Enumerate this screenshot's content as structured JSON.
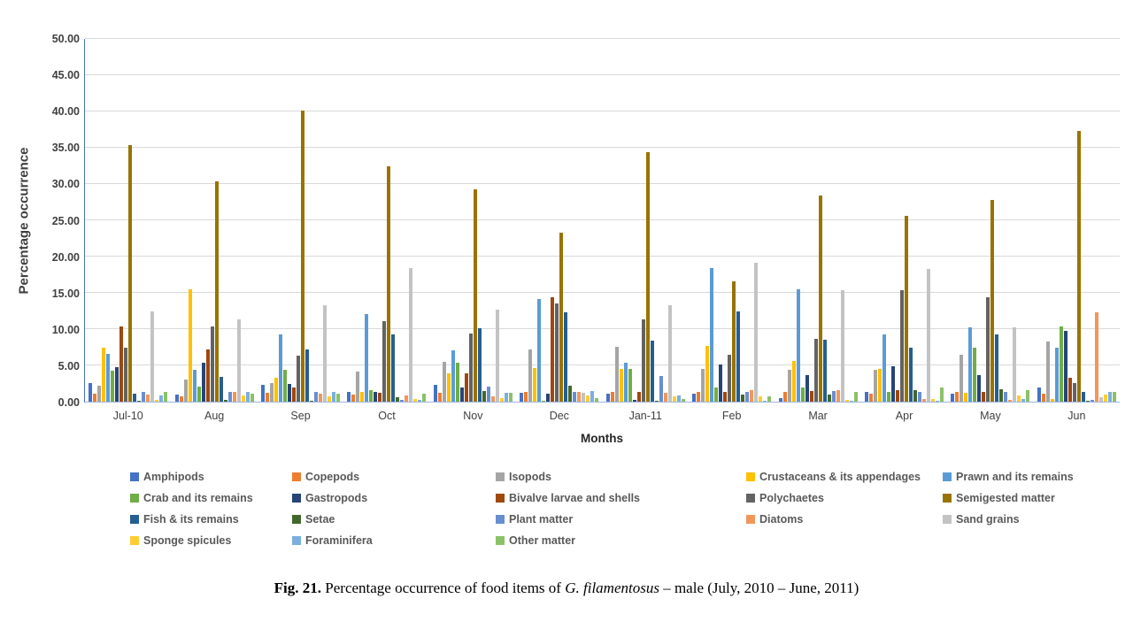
{
  "chart_data": {
    "type": "bar",
    "title": "",
    "xlabel": "Months",
    "ylabel": "Percentage occurrence",
    "ylim": [
      0,
      50
    ],
    "ytick_step": 5,
    "ytick_labels": [
      "0.00",
      "5.00",
      "10.00",
      "15.00",
      "20.00",
      "25.00",
      "30.00",
      "35.00",
      "40.00",
      "45.00",
      "50.00"
    ],
    "grid": true,
    "legend_position": "bottom",
    "categories": [
      "Jul-10",
      "Aug",
      "Sep",
      "Oct",
      "Nov",
      "Dec",
      "Jan-11",
      "Feb",
      "Mar",
      "Apr",
      "May",
      "Jun"
    ],
    "series": [
      {
        "name": "Amphipods",
        "color": "#4472c4",
        "values": [
          2.5,
          1.0,
          2.3,
          1.3,
          2.3,
          1.2,
          1.1,
          1.1,
          0.5,
          1.3,
          1.1,
          2.0
        ]
      },
      {
        "name": "Copepods",
        "color": "#ed7d31",
        "values": [
          1.1,
          0.7,
          1.2,
          1.0,
          1.2,
          1.3,
          1.4,
          1.3,
          1.4,
          1.1,
          1.4,
          1.1
        ]
      },
      {
        "name": "Isopods",
        "color": "#a5a5a5",
        "values": [
          2.2,
          3.1,
          2.5,
          4.1,
          5.5,
          7.2,
          7.5,
          4.5,
          4.4,
          4.4,
          6.4,
          8.3
        ]
      },
      {
        "name": "Crustaceans & its appendages",
        "color": "#ffc000",
        "values": [
          7.4,
          15.4,
          3.3,
          1.4,
          3.9,
          4.6,
          4.5,
          7.7,
          5.6,
          4.5,
          1.2,
          0.4
        ]
      },
      {
        "name": "Prawn and its remains",
        "color": "#5b9bd5",
        "values": [
          6.6,
          4.4,
          9.3,
          12.1,
          7.1,
          14.1,
          5.4,
          18.4,
          15.4,
          9.3,
          10.2,
          7.4
        ]
      },
      {
        "name": "Crab and its remains",
        "color": "#70ad47",
        "values": [
          4.3,
          2.1,
          4.4,
          1.6,
          5.4,
          0.1,
          4.5,
          2.0,
          2.0,
          1.4,
          7.4,
          10.4
        ]
      },
      {
        "name": "Gastropods",
        "color": "#264478",
        "values": [
          4.8,
          5.3,
          2.4,
          1.3,
          2.0,
          1.1,
          0.3,
          5.1,
          3.6,
          4.9,
          3.7,
          9.7
        ]
      },
      {
        "name": "Bivalve larvae and shells",
        "color": "#9e480e",
        "values": [
          10.3,
          7.2,
          2.0,
          1.2,
          3.9,
          14.3,
          1.4,
          1.4,
          1.5,
          1.6,
          1.3,
          3.3
        ]
      },
      {
        "name": "Polychaetes",
        "color": "#636363",
        "values": [
          7.4,
          10.4,
          6.3,
          11.1,
          9.4,
          13.5,
          11.3,
          6.4,
          8.7,
          15.3,
          14.3,
          2.5
        ]
      },
      {
        "name": "Semigested matter",
        "color": "#997300",
        "values": [
          35.3,
          30.3,
          40.0,
          32.4,
          29.2,
          23.2,
          34.3,
          16.5,
          28.4,
          25.6,
          27.7,
          37.2
        ]
      },
      {
        "name": "Fish & its remains",
        "color": "#255e91",
        "values": [
          1.1,
          3.4,
          7.2,
          9.3,
          10.1,
          12.3,
          8.4,
          12.4,
          8.5,
          7.4,
          9.3,
          1.3
        ]
      },
      {
        "name": "Setae",
        "color": "#43682b",
        "values": [
          0.1,
          0.2,
          0.1,
          0.6,
          1.5,
          2.2,
          0.1,
          1.0,
          1.0,
          1.6,
          1.7,
          0.1
        ]
      },
      {
        "name": "Plant matter",
        "color": "#698ed0",
        "values": [
          1.3,
          1.3,
          1.3,
          0.2,
          2.1,
          1.3,
          3.5,
          1.4,
          1.5,
          1.4,
          1.4,
          0.3
        ]
      },
      {
        "name": "Diatoms",
        "color": "#f1975a",
        "values": [
          1.0,
          1.3,
          1.1,
          0.9,
          0.7,
          1.3,
          1.2,
          1.6,
          1.6,
          0.4,
          0.3,
          12.3
        ]
      },
      {
        "name": "Sand grains",
        "color": "#c3c3c3",
        "values": [
          12.4,
          11.3,
          13.3,
          18.4,
          12.6,
          1.2,
          13.3,
          19.1,
          15.3,
          18.2,
          10.2,
          0.6
        ]
      },
      {
        "name": "Sponge spicules",
        "color": "#ffcd33",
        "values": [
          0.3,
          0.9,
          0.7,
          0.4,
          0.5,
          0.9,
          0.7,
          0.7,
          0.3,
          0.4,
          0.9,
          1.0
        ]
      },
      {
        "name": "Foraminifera",
        "color": "#7cafdd",
        "values": [
          0.8,
          1.3,
          1.3,
          0.3,
          1.2,
          1.5,
          0.9,
          0.1,
          0.1,
          0.1,
          0.4,
          1.3
        ]
      },
      {
        "name": "Other matter",
        "color": "#8cc168",
        "values": [
          1.3,
          1.1,
          1.1,
          1.1,
          1.2,
          0.5,
          0.4,
          0.7,
          1.3,
          2.0,
          1.6,
          1.3
        ]
      }
    ]
  },
  "caption": {
    "prefix": "Fig. 21.",
    "body": " Percentage occurrence of food items of ",
    "species": "G. filamentosus",
    "suffix": " – male (July, 2010 – June, 2011)"
  }
}
